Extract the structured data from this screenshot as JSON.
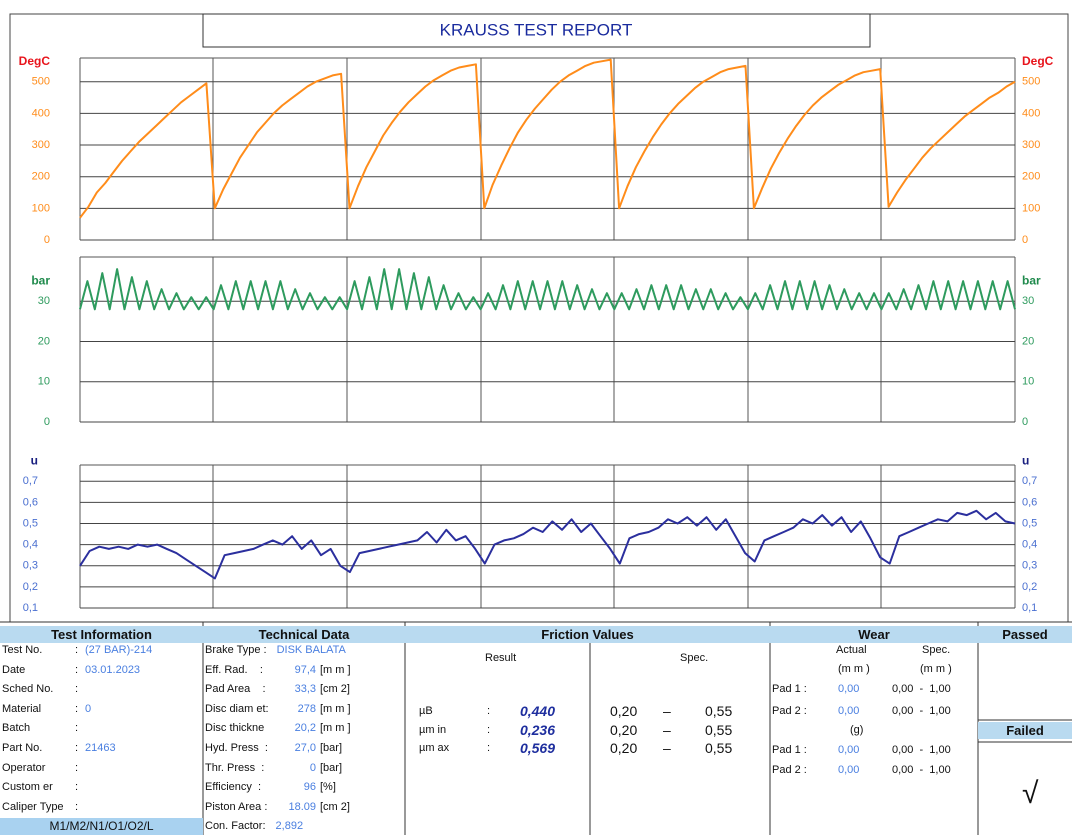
{
  "title": "KRAUSS TEST REPORT",
  "chart_data": [
    {
      "type": "line",
      "axis_title": "DegC",
      "color": "#ff8c1a",
      "tick_color": "#ff8c1a",
      "title_color": "#e8141c",
      "ylim": [
        0,
        575
      ],
      "yticks": [
        0,
        100,
        200,
        300,
        400,
        500
      ],
      "grid": true,
      "values": [
        70,
        105,
        150,
        180,
        215,
        250,
        280,
        310,
        335,
        360,
        385,
        410,
        435,
        455,
        475,
        495,
        100,
        160,
        210,
        260,
        300,
        340,
        370,
        400,
        425,
        445,
        465,
        485,
        500,
        510,
        520,
        525,
        100,
        170,
        230,
        280,
        330,
        370,
        405,
        435,
        460,
        485,
        505,
        520,
        535,
        545,
        550,
        555,
        100,
        175,
        235,
        290,
        340,
        380,
        415,
        445,
        475,
        500,
        520,
        535,
        550,
        560,
        565,
        570,
        100,
        170,
        230,
        280,
        325,
        365,
        400,
        430,
        455,
        480,
        500,
        515,
        530,
        540,
        545,
        550,
        100,
        165,
        225,
        275,
        320,
        360,
        395,
        425,
        450,
        470,
        490,
        505,
        520,
        530,
        535,
        540,
        105,
        150,
        190,
        225,
        260,
        290,
        315,
        340,
        365,
        390,
        410,
        430,
        450,
        465,
        485,
        500
      ]
    },
    {
      "type": "line",
      "axis_title": "bar",
      "color": "#2e9b5e",
      "tick_color": "#2e9b5e",
      "title_color": "#1f8a4c",
      "ylim": [
        0,
        41
      ],
      "yticks": [
        0,
        10,
        20,
        30
      ],
      "grid": true,
      "values": [
        28,
        35,
        28,
        37,
        28,
        38,
        28,
        36,
        28,
        35,
        28,
        33,
        28,
        32,
        28,
        31,
        28,
        31,
        28,
        34,
        28,
        35,
        28,
        35,
        28,
        35,
        28,
        35,
        28,
        33,
        28,
        32,
        28,
        31,
        28,
        31,
        28,
        35,
        28,
        36,
        28,
        38,
        28,
        38,
        28,
        37,
        28,
        36,
        28,
        34,
        28,
        32,
        28,
        31,
        28,
        32,
        28,
        34,
        28,
        35,
        28,
        35,
        28,
        35,
        28,
        35,
        28,
        34,
        28,
        33,
        28,
        32,
        28,
        32,
        28,
        33,
        28,
        34,
        28,
        34,
        28,
        34,
        28,
        33,
        28,
        33,
        28,
        32,
        28,
        31,
        28,
        32,
        28,
        34,
        28,
        35,
        28,
        35,
        28,
        35,
        28,
        34,
        28,
        33,
        28,
        32,
        28,
        32,
        28,
        32,
        28,
        33,
        28,
        34,
        28,
        35,
        28,
        35,
        28,
        35,
        28,
        35,
        28,
        35,
        28,
        35,
        28
      ]
    },
    {
      "type": "line",
      "axis_title": "u",
      "color": "#2b2f9e",
      "tick_color": "#4a6fd0",
      "title_color": "#1a2080",
      "ylim": [
        0.1,
        0.777
      ],
      "yticks": [
        {
          "value": 0.1,
          "label": "0,1"
        },
        {
          "value": 0.2,
          "label": "0,2"
        },
        {
          "value": 0.3,
          "label": "0,3"
        },
        {
          "value": 0.4,
          "label": "0,4"
        },
        {
          "value": 0.5,
          "label": "0,5"
        },
        {
          "value": 0.6,
          "label": "0,6"
        },
        {
          "value": 0.7,
          "label": "0,7"
        }
      ],
      "grid": true,
      "values": [
        0.3,
        0.37,
        0.39,
        0.38,
        0.39,
        0.38,
        0.4,
        0.39,
        0.4,
        0.38,
        0.36,
        0.33,
        0.3,
        0.27,
        0.24,
        0.35,
        0.36,
        0.37,
        0.38,
        0.4,
        0.42,
        0.4,
        0.44,
        0.38,
        0.42,
        0.35,
        0.38,
        0.3,
        0.27,
        0.36,
        0.37,
        0.38,
        0.39,
        0.4,
        0.41,
        0.42,
        0.46,
        0.41,
        0.47,
        0.42,
        0.44,
        0.38,
        0.31,
        0.4,
        0.42,
        0.43,
        0.45,
        0.48,
        0.46,
        0.51,
        0.47,
        0.52,
        0.46,
        0.5,
        0.44,
        0.38,
        0.31,
        0.43,
        0.45,
        0.46,
        0.48,
        0.52,
        0.5,
        0.53,
        0.49,
        0.53,
        0.47,
        0.52,
        0.44,
        0.36,
        0.32,
        0.42,
        0.44,
        0.46,
        0.48,
        0.52,
        0.5,
        0.54,
        0.49,
        0.53,
        0.46,
        0.51,
        0.43,
        0.34,
        0.31,
        0.44,
        0.46,
        0.48,
        0.5,
        0.52,
        0.51,
        0.55,
        0.54,
        0.56,
        0.52,
        0.55,
        0.51,
        0.5
      ]
    }
  ],
  "test_information": {
    "header": "Test Information",
    "rows": [
      {
        "label": "Test No.",
        "sep": ":",
        "value": "(27 BAR)-214"
      },
      {
        "label": "Date",
        "sep": ":",
        "value": "03.01.2023"
      },
      {
        "label": "Sched No.",
        "sep": ":"
      },
      {
        "label": "Material",
        "sep": ":",
        "value": "0"
      },
      {
        "label": "Batch",
        "sep": ":"
      },
      {
        "label": "Part No.",
        "sep": ":",
        "value": "21463"
      },
      {
        "label": "Operator",
        "sep": ":"
      },
      {
        "label": "Custom er",
        "sep": ":"
      },
      {
        "label": "Caliper Type",
        "sep": ":"
      }
    ],
    "caliper": "M1/M2/N1/O1/O2/L"
  },
  "technical_data": {
    "header": "Technical Data",
    "rows": [
      {
        "label": "Brake Type :",
        "value": "DISK BALATA"
      },
      {
        "label": "Eff. Rad.    :",
        "value": "97,4",
        "unit": "[m m ]"
      },
      {
        "label": "Pad Area    :",
        "value": "33,3",
        "unit": "[cm 2]"
      },
      {
        "label": "Disc diam et:",
        "value": "278",
        "unit": "[m m ]"
      },
      {
        "label": "Disc thickne",
        "value": "20,2",
        "unit": "[m m ]"
      },
      {
        "label": "Hyd. Press  :",
        "value": "27,0",
        "unit": "[bar]"
      },
      {
        "label": "Thr. Press  :",
        "value": "0",
        "unit": "[bar]"
      },
      {
        "label": "Efficiency  :",
        "value": "96",
        "unit": "[%]"
      },
      {
        "label": "Piston Area :",
        "value": "18.09",
        "unit": "[cm 2]"
      },
      {
        "label": "Con. Factor:",
        "value": "2,892"
      }
    ]
  },
  "friction_values": {
    "header": "Friction Values",
    "result_label": "Result",
    "spec_label": "Spec.",
    "rows": [
      {
        "label": "µB",
        "sep": ":",
        "value": "0,440",
        "spec_min": "0,20",
        "dash": "–",
        "spec_max": "0,55"
      },
      {
        "label": "µm in",
        "sep": ":",
        "value": "0,236",
        "spec_min": "0,20",
        "dash": "–",
        "spec_max": "0,55"
      },
      {
        "label": "µm ax",
        "sep": ":",
        "value": "0,569",
        "spec_min": "0,20",
        "dash": "–",
        "spec_max": "0,55"
      }
    ]
  },
  "wear": {
    "header": "Wear",
    "actual_label": "Actual",
    "spec_label": "Spec.",
    "actual_unit": "(m m )",
    "spec_unit": "(m m )",
    "mass_unit": "(g)",
    "rows": [
      {
        "label": "Pad 1 :",
        "actual": "0,00",
        "spec": "0,00  -  1,00"
      },
      {
        "label": "Pad 2 :",
        "actual": "0,00",
        "spec": "0,00  -  1,00"
      },
      {
        "label": "Pad 1 :",
        "actual": "0,00",
        "spec": "0,00  -  1,00"
      },
      {
        "label": "Pad 2 :",
        "actual": "0,00",
        "spec": "0,00  -  1,00"
      }
    ]
  },
  "status": {
    "passed": "Passed",
    "failed": "Failed",
    "mark": "√"
  }
}
